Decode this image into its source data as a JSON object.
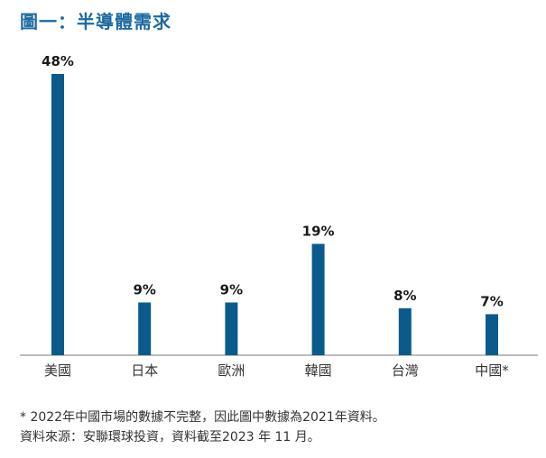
{
  "chart_data": {
    "type": "bar",
    "title": "圖一：半導體需求",
    "categories": [
      "美國",
      "日本",
      "歐洲",
      "韓國",
      "台灣",
      "中國*"
    ],
    "values": [
      48,
      9,
      9,
      19,
      8,
      7
    ],
    "value_labels": [
      "48%",
      "9%",
      "9%",
      "19%",
      "8%",
      "7%"
    ],
    "unit": "%",
    "ylim": [
      0,
      50
    ],
    "grid": false,
    "legend": "none",
    "bar_color": "#0b5a8c"
  },
  "footnotes": {
    "note": "* 2022年中國市場的數據不完整，因此圖中數據為2021年資料。",
    "source": "資料來源：安聯環球投資，資料截至2023 年 11 月。"
  },
  "colors": {
    "title": "#1b6aa0",
    "bar": "#0b5a8c",
    "axis": "#7a7a7a"
  }
}
